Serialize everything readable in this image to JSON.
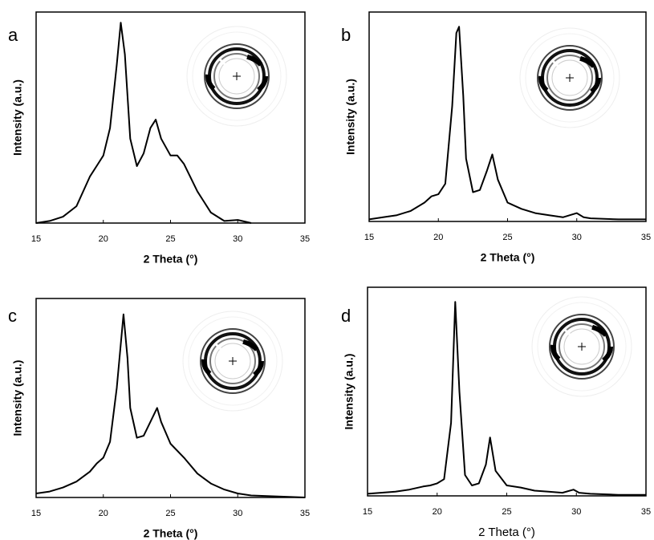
{
  "chart_data": [
    {
      "type": "line",
      "panel": "a",
      "xlabel": "2 Theta (°)",
      "ylabel": "Intensity (a.u.)",
      "color": "#000000",
      "xlim": [
        15,
        35
      ],
      "xticks": [
        15,
        20,
        25,
        30,
        35
      ],
      "ylim": [
        0,
        100
      ],
      "grid": false,
      "x": [
        15,
        16,
        17,
        18,
        19,
        19.5,
        20,
        20.5,
        21,
        21.3,
        21.6,
        22,
        22.5,
        23,
        23.5,
        23.9,
        24.3,
        25,
        25.5,
        26,
        27,
        28,
        29,
        30,
        31
      ],
      "values": [
        0,
        1,
        3,
        8,
        22,
        27,
        32,
        45,
        75,
        95,
        80,
        40,
        27,
        33,
        45,
        49,
        40,
        32,
        32,
        28,
        15,
        5,
        1,
        1.5,
        0
      ]
    },
    {
      "type": "line",
      "panel": "b",
      "xlabel": "2 Theta (°)",
      "ylabel": "Intensity (a.u.)",
      "color": "#000000",
      "xlim": [
        15,
        35
      ],
      "xticks": [
        15,
        20,
        25,
        30,
        35
      ],
      "ylim": [
        0,
        100
      ],
      "grid": false,
      "x": [
        15,
        16,
        17,
        18,
        19,
        19.5,
        20,
        20.5,
        21,
        21.3,
        21.5,
        21.8,
        22,
        22.5,
        23,
        23.5,
        23.9,
        24.3,
        25,
        26,
        27,
        28,
        29,
        29.5,
        30,
        30.5,
        31,
        33,
        35
      ],
      "values": [
        1,
        2,
        3,
        5,
        9,
        12,
        13,
        18,
        55,
        90,
        93,
        60,
        30,
        14,
        15,
        24,
        32,
        20,
        9,
        6,
        4,
        3,
        2,
        3,
        4,
        2,
        1.5,
        1,
        1
      ]
    },
    {
      "type": "line",
      "panel": "c",
      "xlabel": "2 Theta (°)",
      "ylabel": "Intensity (a.u.)",
      "color": "#000000",
      "xlim": [
        15,
        35
      ],
      "xticks": [
        15,
        20,
        25,
        30,
        35
      ],
      "ylim": [
        0,
        100
      ],
      "grid": false,
      "x": [
        15,
        16,
        17,
        18,
        19,
        19.5,
        20,
        20.5,
        21,
        21.5,
        21.8,
        22,
        22.5,
        23,
        23.5,
        24,
        24.3,
        25,
        26,
        27,
        28,
        29,
        30,
        31,
        33,
        35
      ],
      "values": [
        2,
        3,
        5,
        8,
        13,
        17,
        20,
        28,
        55,
        92,
        70,
        45,
        30,
        31,
        38,
        45,
        38,
        27,
        20,
        12,
        7,
        4,
        2,
        1,
        0.5,
        0
      ]
    },
    {
      "type": "line",
      "panel": "d",
      "xlabel": "2 Theta (°)",
      "ylabel": "Intensity (a.u.)",
      "color": "#000000",
      "xlim": [
        15,
        35
      ],
      "xticks": [
        15,
        20,
        25,
        30,
        35
      ],
      "ylim": [
        0,
        100
      ],
      "grid": false,
      "x": [
        15,
        17,
        18,
        19,
        19.5,
        20,
        20.5,
        21,
        21.3,
        21.6,
        22,
        22.5,
        23,
        23.5,
        23.8,
        24.2,
        25,
        26,
        27,
        28,
        29,
        29.8,
        30.2,
        31,
        33,
        35
      ],
      "values": [
        1,
        2,
        3,
        4.5,
        5,
        6,
        8,
        35,
        93,
        50,
        10,
        5,
        6,
        15,
        28,
        12,
        5,
        4,
        2.5,
        2,
        1.5,
        3,
        1.5,
        1,
        0.5,
        0.5
      ]
    }
  ]
}
